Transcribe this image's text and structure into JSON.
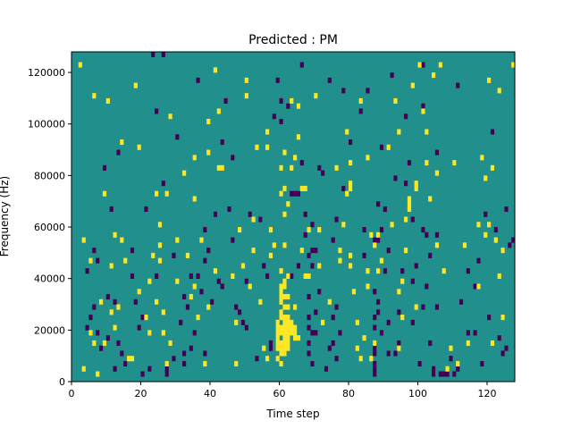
{
  "chart_data": {
    "type": "heatmap",
    "title": "Predicted : PM",
    "xlabel": "Time step",
    "ylabel": "Frequency (Hz)",
    "xlim": [
      0,
      128
    ],
    "ylim": [
      0,
      128000
    ],
    "x_ticks": [
      0,
      20,
      40,
      60,
      80,
      100,
      120
    ],
    "y_ticks": [
      0,
      20000,
      40000,
      60000,
      80000,
      100000,
      120000
    ],
    "x_tick_labels": [
      "0",
      "20",
      "40",
      "60",
      "80",
      "100",
      "120"
    ],
    "y_tick_labels": [
      "0",
      "20000",
      "40000",
      "60000",
      "80000",
      "100000",
      "120000"
    ],
    "grid": false,
    "legend": "none",
    "colors": {
      "background": "#21908d",
      "high": "#fde725",
      "low": "#440154"
    },
    "cells_high": [
      [
        2,
        122000
      ],
      [
        3,
        54000
      ],
      [
        3,
        4000
      ],
      [
        5,
        46000
      ],
      [
        5,
        18000
      ],
      [
        6,
        110000
      ],
      [
        6,
        14000
      ],
      [
        7,
        2000
      ],
      [
        8,
        30000
      ],
      [
        9,
        72000
      ],
      [
        9,
        14000
      ],
      [
        10,
        108000
      ],
      [
        11,
        44000
      ],
      [
        11,
        26000
      ],
      [
        12,
        56000
      ],
      [
        12,
        20000
      ],
      [
        13,
        28000
      ],
      [
        14,
        54000
      ],
      [
        14,
        92000
      ],
      [
        15,
        46000
      ],
      [
        16,
        8000
      ],
      [
        17,
        8000
      ],
      [
        18,
        114000
      ],
      [
        19,
        90000
      ],
      [
        19,
        34000
      ],
      [
        21,
        24000
      ],
      [
        22,
        38000
      ],
      [
        22,
        18000
      ],
      [
        23,
        48000
      ],
      [
        24,
        72000
      ],
      [
        24,
        30000
      ],
      [
        25,
        60000
      ],
      [
        25,
        52000
      ],
      [
        25,
        46000
      ],
      [
        26,
        26000
      ],
      [
        26,
        18000
      ],
      [
        27,
        72000
      ],
      [
        27,
        6000
      ],
      [
        28,
        102000
      ],
      [
        28,
        14000
      ],
      [
        30,
        54000
      ],
      [
        30,
        38000
      ],
      [
        32,
        80000
      ],
      [
        33,
        48000
      ],
      [
        34,
        32000
      ],
      [
        35,
        86000
      ],
      [
        35,
        70000
      ],
      [
        35,
        36000
      ],
      [
        36,
        24000
      ],
      [
        37,
        54000
      ],
      [
        38,
        6000
      ],
      [
        39,
        100000
      ],
      [
        39,
        88000
      ],
      [
        39,
        28000
      ],
      [
        41,
        120000
      ],
      [
        41,
        42000
      ],
      [
        42,
        104000
      ],
      [
        42,
        82000
      ],
      [
        43,
        82000
      ],
      [
        46,
        40000
      ],
      [
        47,
        6000
      ],
      [
        47,
        22000
      ],
      [
        48,
        58000
      ],
      [
        49,
        44000
      ],
      [
        50,
        116000
      ],
      [
        50,
        110000
      ],
      [
        51,
        36000
      ],
      [
        52,
        62000
      ],
      [
        52,
        50000
      ],
      [
        53,
        90000
      ],
      [
        54,
        30000
      ],
      [
        55,
        12000
      ],
      [
        56,
        96000
      ],
      [
        56,
        90000
      ],
      [
        56,
        8000
      ],
      [
        57,
        58000
      ],
      [
        57,
        48000
      ],
      [
        58,
        52000
      ],
      [
        59,
        8000
      ],
      [
        59,
        12000
      ],
      [
        59,
        14000
      ],
      [
        59,
        16000
      ],
      [
        59,
        18000
      ],
      [
        59,
        20000
      ],
      [
        59,
        22000
      ],
      [
        60,
        30000
      ],
      [
        60,
        32000
      ],
      [
        60,
        34000
      ],
      [
        60,
        36000
      ],
      [
        60,
        26000
      ],
      [
        60,
        24000
      ],
      [
        60,
        20000
      ],
      [
        60,
        18000
      ],
      [
        60,
        14000
      ],
      [
        60,
        12000
      ],
      [
        60,
        10000
      ],
      [
        60,
        6000
      ],
      [
        60,
        42000
      ],
      [
        60,
        72000
      ],
      [
        60,
        82000
      ],
      [
        61,
        24000
      ],
      [
        61,
        22000
      ],
      [
        61,
        20000
      ],
      [
        61,
        18000
      ],
      [
        61,
        16000
      ],
      [
        61,
        14000
      ],
      [
        61,
        12000
      ],
      [
        61,
        10000
      ],
      [
        61,
        28000
      ],
      [
        61,
        32000
      ],
      [
        61,
        36000
      ],
      [
        61,
        38000
      ],
      [
        61,
        52000
      ],
      [
        61,
        64000
      ],
      [
        61,
        74000
      ],
      [
        61,
        88000
      ],
      [
        62,
        24000
      ],
      [
        62,
        22000
      ],
      [
        62,
        20000
      ],
      [
        62,
        18000
      ],
      [
        62,
        16000
      ],
      [
        62,
        14000
      ],
      [
        62,
        12000
      ],
      [
        62,
        28000
      ],
      [
        62,
        32000
      ],
      [
        62,
        40000
      ],
      [
        62,
        68000
      ],
      [
        63,
        108000
      ],
      [
        63,
        82000
      ],
      [
        63,
        18000
      ],
      [
        63,
        20000
      ],
      [
        63,
        22000
      ],
      [
        64,
        16000
      ],
      [
        64,
        20000
      ],
      [
        64,
        18000
      ],
      [
        64,
        28000
      ],
      [
        64,
        86000
      ],
      [
        65,
        16000
      ],
      [
        65,
        106000
      ],
      [
        65,
        94000
      ],
      [
        66,
        74000
      ],
      [
        66,
        50000
      ],
      [
        67,
        40000
      ],
      [
        67,
        74000
      ],
      [
        68,
        58000
      ],
      [
        68,
        40000
      ],
      [
        70,
        110000
      ],
      [
        71,
        44000
      ],
      [
        71,
        58000
      ],
      [
        72,
        22000
      ],
      [
        74,
        30000
      ],
      [
        76,
        82000
      ],
      [
        77,
        50000
      ],
      [
        77,
        46000
      ],
      [
        78,
        60000
      ],
      [
        79,
        96000
      ],
      [
        79,
        72000
      ],
      [
        80,
        84000
      ],
      [
        80,
        76000
      ],
      [
        80,
        74000
      ],
      [
        80,
        48000
      ],
      [
        80,
        44000
      ],
      [
        81,
        34000
      ],
      [
        82,
        22000
      ],
      [
        82,
        12000
      ],
      [
        83,
        108000
      ],
      [
        83,
        8000
      ],
      [
        84,
        16000
      ],
      [
        85,
        36000
      ],
      [
        85,
        42000
      ],
      [
        85,
        86000
      ],
      [
        86,
        8000
      ],
      [
        86,
        56000
      ],
      [
        87,
        52000
      ],
      [
        87,
        14000
      ],
      [
        88,
        56000
      ],
      [
        88,
        42000
      ],
      [
        89,
        46000
      ],
      [
        91,
        90000
      ],
      [
        92,
        60000
      ],
      [
        93,
        108000
      ],
      [
        94,
        96000
      ],
      [
        94,
        34000
      ],
      [
        94,
        12000
      ],
      [
        95,
        24000
      ],
      [
        95,
        38000
      ],
      [
        96,
        50000
      ],
      [
        96,
        62000
      ],
      [
        97,
        66000
      ],
      [
        97,
        68000
      ],
      [
        97,
        70000
      ],
      [
        98,
        114000
      ],
      [
        99,
        28000
      ],
      [
        99,
        74000
      ],
      [
        99,
        76000
      ],
      [
        100,
        122000
      ],
      [
        101,
        104000
      ],
      [
        102,
        96000
      ],
      [
        102,
        84000
      ],
      [
        103,
        70000
      ],
      [
        104,
        118000
      ],
      [
        105,
        80000
      ],
      [
        105,
        52000
      ],
      [
        106,
        122000
      ],
      [
        107,
        42000
      ],
      [
        108,
        4000
      ],
      [
        109,
        12000
      ],
      [
        110,
        84000
      ],
      [
        111,
        6000
      ],
      [
        113,
        52000
      ],
      [
        114,
        14000
      ],
      [
        117,
        36000
      ],
      [
        117,
        60000
      ],
      [
        118,
        86000
      ],
      [
        119,
        56000
      ],
      [
        119,
        78000
      ],
      [
        120,
        116000
      ],
      [
        120,
        60000
      ],
      [
        121,
        82000
      ],
      [
        121,
        14000
      ],
      [
        122,
        54000
      ],
      [
        123,
        112000
      ],
      [
        123,
        40000
      ],
      [
        124,
        24000
      ],
      [
        124,
        50000
      ],
      [
        127,
        122000
      ]
    ],
    "cells_low": [
      [
        4,
        42000
      ],
      [
        4,
        20000
      ],
      [
        5,
        24000
      ],
      [
        6,
        50000
      ],
      [
        6,
        28000
      ],
      [
        7,
        46000
      ],
      [
        7,
        18000
      ],
      [
        8,
        12000
      ],
      [
        9,
        82000
      ],
      [
        10,
        32000
      ],
      [
        10,
        16000
      ],
      [
        11,
        66000
      ],
      [
        12,
        4000
      ],
      [
        12,
        30000
      ],
      [
        13,
        88000
      ],
      [
        13,
        14000
      ],
      [
        14,
        10000
      ],
      [
        15,
        6000
      ],
      [
        17,
        50000
      ],
      [
        17,
        40000
      ],
      [
        18,
        30000
      ],
      [
        19,
        20000
      ],
      [
        20,
        24000
      ],
      [
        20,
        2000
      ],
      [
        21,
        66000
      ],
      [
        22,
        4000
      ],
      [
        23,
        126000
      ],
      [
        24,
        104000
      ],
      [
        24,
        40000
      ],
      [
        26,
        126000
      ],
      [
        26,
        76000
      ],
      [
        27,
        4000
      ],
      [
        27,
        2000
      ],
      [
        29,
        8000
      ],
      [
        29,
        48000
      ],
      [
        30,
        94000
      ],
      [
        31,
        22000
      ],
      [
        32,
        32000
      ],
      [
        32,
        10000
      ],
      [
        32,
        6000
      ],
      [
        33,
        28000
      ],
      [
        34,
        12000
      ],
      [
        34,
        40000
      ],
      [
        35,
        18000
      ],
      [
        36,
        40000
      ],
      [
        36,
        116000
      ],
      [
        37,
        34000
      ],
      [
        38,
        10000
      ],
      [
        38,
        46000
      ],
      [
        38,
        58000
      ],
      [
        39,
        50000
      ],
      [
        40,
        30000
      ],
      [
        41,
        64000
      ],
      [
        42,
        38000
      ],
      [
        43,
        36000
      ],
      [
        43,
        92000
      ],
      [
        44,
        108000
      ],
      [
        45,
        66000
      ],
      [
        46,
        86000
      ],
      [
        46,
        54000
      ],
      [
        47,
        28000
      ],
      [
        48,
        26000
      ],
      [
        49,
        22000
      ],
      [
        50,
        38000
      ],
      [
        50,
        20000
      ],
      [
        51,
        64000
      ],
      [
        53,
        8000
      ],
      [
        54,
        62000
      ],
      [
        55,
        44000
      ],
      [
        56,
        40000
      ],
      [
        57,
        14000
      ],
      [
        57,
        12000
      ],
      [
        58,
        102000
      ],
      [
        59,
        116000
      ],
      [
        60,
        108000
      ],
      [
        60,
        100000
      ],
      [
        62,
        106000
      ],
      [
        63,
        40000
      ],
      [
        63,
        72000
      ],
      [
        64,
        72000
      ],
      [
        65,
        72000
      ],
      [
        65,
        44000
      ],
      [
        66,
        122000
      ],
      [
        66,
        84000
      ],
      [
        67,
        56000
      ],
      [
        67,
        64000
      ],
      [
        68,
        48000
      ],
      [
        68,
        32000
      ],
      [
        68,
        24000
      ],
      [
        68,
        20000
      ],
      [
        68,
        14000
      ],
      [
        68,
        10000
      ],
      [
        69,
        60000
      ],
      [
        69,
        50000
      ],
      [
        69,
        44000
      ],
      [
        69,
        18000
      ],
      [
        69,
        6000
      ],
      [
        70,
        18000
      ],
      [
        70,
        26000
      ],
      [
        70,
        50000
      ],
      [
        71,
        82000
      ],
      [
        71,
        34000
      ],
      [
        72,
        80000
      ],
      [
        73,
        4000
      ],
      [
        74,
        12000
      ],
      [
        74,
        116000
      ],
      [
        75,
        24000
      ],
      [
        75,
        54000
      ],
      [
        75,
        14000
      ],
      [
        76,
        28000
      ],
      [
        76,
        8000
      ],
      [
        76,
        62000
      ],
      [
        77,
        18000
      ],
      [
        78,
        74000
      ],
      [
        78,
        112000
      ],
      [
        80,
        92000
      ],
      [
        83,
        104000
      ],
      [
        84,
        58000
      ],
      [
        84,
        48000
      ],
      [
        85,
        112000
      ],
      [
        87,
        6000
      ],
      [
        87,
        2000
      ],
      [
        87,
        4000
      ],
      [
        87,
        10000
      ],
      [
        87,
        12000
      ],
      [
        87,
        14000
      ],
      [
        87,
        20000
      ],
      [
        87,
        24000
      ],
      [
        87,
        34000
      ],
      [
        87,
        54000
      ],
      [
        88,
        54000
      ],
      [
        88,
        30000
      ],
      [
        88,
        26000
      ],
      [
        88,
        68000
      ],
      [
        88,
        42000
      ],
      [
        89,
        90000
      ],
      [
        89,
        58000
      ],
      [
        89,
        18000
      ],
      [
        90,
        42000
      ],
      [
        90,
        66000
      ],
      [
        91,
        10000
      ],
      [
        91,
        22000
      ],
      [
        91,
        50000
      ],
      [
        92,
        118000
      ],
      [
        93,
        78000
      ],
      [
        93,
        10000
      ],
      [
        94,
        14000
      ],
      [
        94,
        26000
      ],
      [
        95,
        42000
      ],
      [
        96,
        76000
      ],
      [
        96,
        102000
      ],
      [
        97,
        84000
      ],
      [
        98,
        22000
      ],
      [
        98,
        38000
      ],
      [
        98,
        62000
      ],
      [
        99,
        44000
      ],
      [
        100,
        6000
      ],
      [
        101,
        58000
      ],
      [
        101,
        106000
      ],
      [
        101,
        28000
      ],
      [
        101,
        122000
      ],
      [
        102,
        56000
      ],
      [
        102,
        36000
      ],
      [
        103,
        48000
      ],
      [
        103,
        14000
      ],
      [
        104,
        2000
      ],
      [
        104,
        4000
      ],
      [
        105,
        56000
      ],
      [
        105,
        88000
      ],
      [
        105,
        28000
      ],
      [
        106,
        2000
      ],
      [
        107,
        2000
      ],
      [
        108,
        2000
      ],
      [
        109,
        8000
      ],
      [
        110,
        2000
      ],
      [
        111,
        4000
      ],
      [
        111,
        114000
      ],
      [
        112,
        30000
      ],
      [
        114,
        18000
      ],
      [
        114,
        42000
      ],
      [
        116,
        18000
      ],
      [
        116,
        36000
      ],
      [
        117,
        46000
      ],
      [
        118,
        6000
      ],
      [
        119,
        64000
      ],
      [
        120,
        24000
      ],
      [
        121,
        96000
      ],
      [
        122,
        58000
      ],
      [
        123,
        16000
      ],
      [
        124,
        10000
      ],
      [
        125,
        12000
      ],
      [
        125,
        66000
      ],
      [
        126,
        52000
      ],
      [
        127,
        54000
      ]
    ]
  }
}
